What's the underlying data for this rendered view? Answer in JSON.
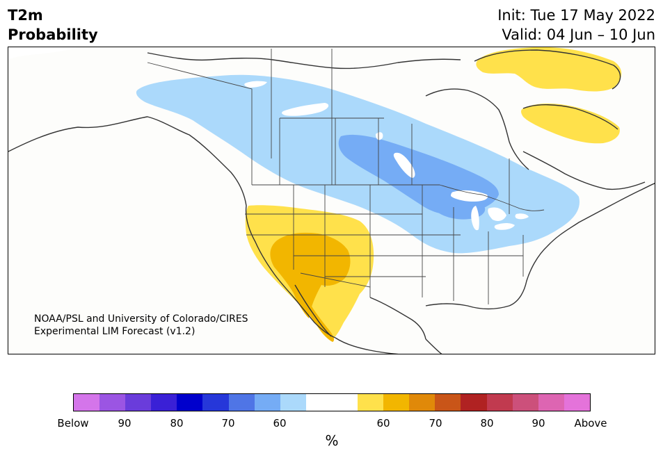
{
  "header": {
    "title_line1": "T2m",
    "title_line2": "Probability",
    "init": "Init: Tue 17 May 2022",
    "valid": "Valid: 04 Jun – 10 Jun"
  },
  "attribution": {
    "line1": "NOAA/PSL and University of Colorado/CIRES",
    "line2": "Experimental LIM Forecast (v1.2)"
  },
  "colorbar": {
    "colors": [
      "#d475ea",
      "#9b55e3",
      "#6a3cdb",
      "#3a20d6",
      "#0000cc",
      "#2637d9",
      "#4f75e6",
      "#75acf5",
      "#abd9fb",
      "#ffffff",
      "#ffffff",
      "#ffe14b",
      "#f2b600",
      "#e08909",
      "#c95518",
      "#b02222",
      "#c13a4f",
      "#cc507b",
      "#dd65b2",
      "#e473da"
    ],
    "labels": [
      "Below",
      "90",
      "80",
      "70",
      "60",
      "60",
      "70",
      "80",
      "90",
      "Above"
    ],
    "unit": "%"
  },
  "map": {
    "colors": {
      "light_blue": "#abd9fb",
      "mid_blue": "#75acf5",
      "yellow": "#ffe14b",
      "gold": "#f2b600",
      "land": "#fdfdfb",
      "lakes": "#ffffff",
      "border": "#333333"
    }
  }
}
